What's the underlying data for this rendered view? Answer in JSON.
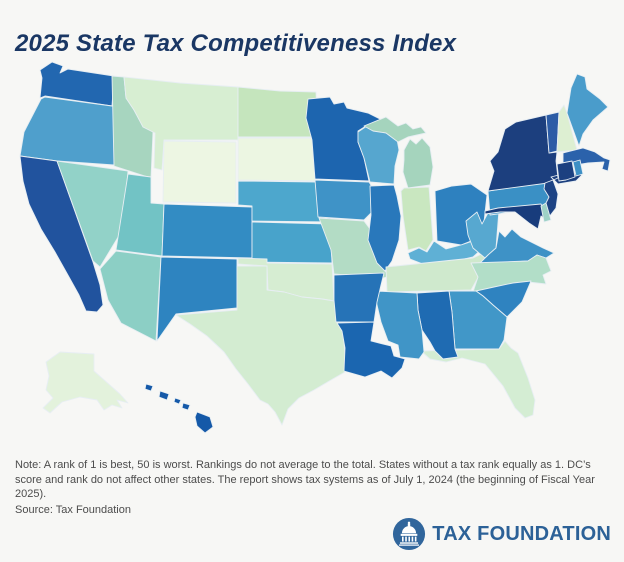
{
  "header": {
    "title": "2025 State Tax Competitiveness Index"
  },
  "footer": {
    "note": "Note: A rank of 1 is best, 50 is worst. Rankings do not average to the total. States without a tax rank equally as 1. DC’s score and rank do not affect other states. The report shows tax systems as of July 1, 2024 (the beginning of Fiscal Year 2025).",
    "source": "Source: Tax Foundation",
    "logo_text": "TAX FOUNDATION",
    "logo_color": "#2c6197"
  },
  "map": {
    "type": "choropleth",
    "region": "United States",
    "stroke_color": "#e7eef3",
    "background_color": "#f7f7f5",
    "states": {
      "WA": {
        "name": "Washington",
        "color": "#2267b0"
      },
      "OR": {
        "name": "Oregon",
        "color": "#4f9fcc"
      },
      "CA": {
        "name": "California",
        "color": "#21539e"
      },
      "NV": {
        "name": "Nevada",
        "color": "#92d2c8"
      },
      "ID": {
        "name": "Idaho",
        "color": "#a7d5bf"
      },
      "MT": {
        "name": "Montana",
        "color": "#d7eed2"
      },
      "WY": {
        "name": "Wyoming",
        "color": "#edf6e3"
      },
      "UT": {
        "name": "Utah",
        "color": "#72c3c5"
      },
      "CO": {
        "name": "Colorado",
        "color": "#338cc3"
      },
      "AZ": {
        "name": "Arizona",
        "color": "#8ccfc5"
      },
      "NM": {
        "name": "New Mexico",
        "color": "#2e84c0"
      },
      "ND": {
        "name": "North Dakota",
        "color": "#c5e5bd"
      },
      "SD": {
        "name": "South Dakota",
        "color": "#ecf6e2"
      },
      "NE": {
        "name": "Nebraska",
        "color": "#4da7cd"
      },
      "KS": {
        "name": "Kansas",
        "color": "#48a3cb"
      },
      "OK": {
        "name": "Oklahoma",
        "color": "#d6edd2"
      },
      "TX": {
        "name": "Texas",
        "color": "#d3ecd1"
      },
      "MN": {
        "name": "Minnesota",
        "color": "#1d65af"
      },
      "IA": {
        "name": "Iowa",
        "color": "#3f93c7"
      },
      "MO": {
        "name": "Missouri",
        "color": "#b3dcc5"
      },
      "WI": {
        "name": "Wisconsin",
        "color": "#56a6cf"
      },
      "IL": {
        "name": "Illinois",
        "color": "#2978bb"
      },
      "IN": {
        "name": "Indiana",
        "color": "#c9e7c0"
      },
      "MI": {
        "name": "Michigan",
        "color": "#a5d4bd"
      },
      "OH": {
        "name": "Ohio",
        "color": "#2e81bf"
      },
      "KY": {
        "name": "Kentucky",
        "color": "#5fb0d5"
      },
      "TN": {
        "name": "Tennessee",
        "color": "#cfe9cd"
      },
      "WV": {
        "name": "West Virginia",
        "color": "#57a8d0"
      },
      "VA": {
        "name": "Virginia",
        "color": "#3e92c6"
      },
      "NC": {
        "name": "North Carolina",
        "color": "#b2dec8"
      },
      "SC": {
        "name": "South Carolina",
        "color": "#2f83c0"
      },
      "GA": {
        "name": "Georgia",
        "color": "#4197c8"
      },
      "AL": {
        "name": "Alabama",
        "color": "#1f6bb2"
      },
      "MS": {
        "name": "Mississippi",
        "color": "#4095c7"
      },
      "AR": {
        "name": "Arkansas",
        "color": "#2673b7"
      },
      "LA": {
        "name": "Louisiana",
        "color": "#1b66b0"
      },
      "FL": {
        "name": "Florida",
        "color": "#d4edd3"
      },
      "PA": {
        "name": "Pennsylvania",
        "color": "#3a90c5"
      },
      "NY": {
        "name": "New York",
        "color": "#1c3f7e"
      },
      "NJ": {
        "name": "New Jersey",
        "color": "#1d4384"
      },
      "DE": {
        "name": "Delaware",
        "color": "#9ed2c6"
      },
      "MD": {
        "name": "Maryland",
        "color": "#183c7c"
      },
      "VT": {
        "name": "Vermont",
        "color": "#2c5ca6"
      },
      "NH": {
        "name": "New Hampshire",
        "color": "#ddefd2"
      },
      "ME": {
        "name": "Maine",
        "color": "#4a9ccb"
      },
      "MA": {
        "name": "Massachusetts",
        "color": "#2b62ab"
      },
      "RI": {
        "name": "Rhode Island",
        "color": "#3d90c5"
      },
      "CT": {
        "name": "Connecticut",
        "color": "#1c4080"
      },
      "AK": {
        "name": "Alaska",
        "color": "#e3f2dc"
      },
      "HI": {
        "name": "Hawaii",
        "color": "#1559a8"
      }
    }
  }
}
